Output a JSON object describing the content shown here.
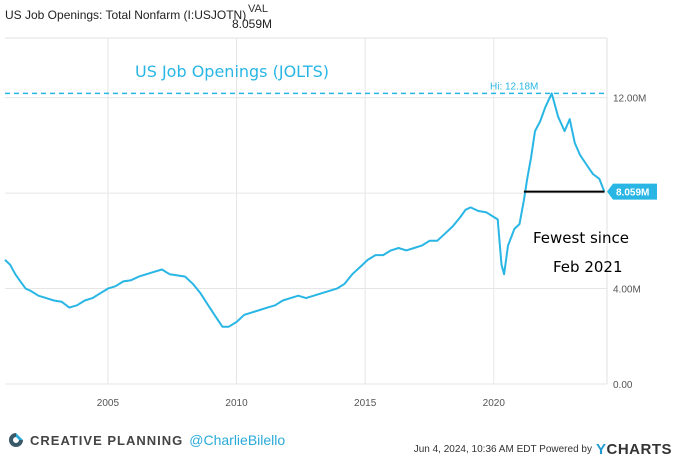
{
  "header": {
    "series_label": "US Job Openings: Total Nonfarm (I:USJOTN)",
    "val_label": "VAL",
    "val_value": "8.059M"
  },
  "chart_data": {
    "type": "line",
    "title": "US Job Openings (JOLTS)",
    "xlabel": "",
    "ylabel": "",
    "xlim": [
      2001.0,
      2024.4
    ],
    "ylim": [
      0,
      14.5
    ],
    "x_ticks": [
      2005,
      2010,
      2015,
      2020
    ],
    "x_tick_labels": [
      "2005",
      "2010",
      "2015",
      "2020"
    ],
    "y_ticks": [
      0,
      4,
      12
    ],
    "y_tick_labels": [
      "0.00",
      "4.00M",
      "12.00M"
    ],
    "high_line": {
      "value": 12.18,
      "label": "Hi: 12.18M"
    },
    "last_value_label": "8.059M",
    "annotation": {
      "text_line1": "Fewest since",
      "text_line2": "Feb 2021",
      "from_x": 2021.17,
      "to_x": 2024.3,
      "y": 8.06
    },
    "series": [
      {
        "color": "#29b6e5",
        "points": [
          [
            2001.0,
            5.2
          ],
          [
            2001.2,
            5.0
          ],
          [
            2001.4,
            4.6
          ],
          [
            2001.6,
            4.3
          ],
          [
            2001.8,
            4.0
          ],
          [
            2002.0,
            3.9
          ],
          [
            2002.3,
            3.7
          ],
          [
            2002.6,
            3.6
          ],
          [
            2002.9,
            3.5
          ],
          [
            2003.2,
            3.45
          ],
          [
            2003.5,
            3.2
          ],
          [
            2003.8,
            3.3
          ],
          [
            2004.1,
            3.5
          ],
          [
            2004.4,
            3.6
          ],
          [
            2004.7,
            3.8
          ],
          [
            2005.0,
            4.0
          ],
          [
            2005.3,
            4.1
          ],
          [
            2005.6,
            4.3
          ],
          [
            2005.9,
            4.35
          ],
          [
            2006.2,
            4.5
          ],
          [
            2006.5,
            4.6
          ],
          [
            2006.8,
            4.7
          ],
          [
            2007.1,
            4.8
          ],
          [
            2007.4,
            4.6
          ],
          [
            2007.7,
            4.55
          ],
          [
            2008.0,
            4.5
          ],
          [
            2008.3,
            4.2
          ],
          [
            2008.6,
            3.8
          ],
          [
            2008.9,
            3.3
          ],
          [
            2009.2,
            2.8
          ],
          [
            2009.45,
            2.4
          ],
          [
            2009.7,
            2.4
          ],
          [
            2010.0,
            2.6
          ],
          [
            2010.3,
            2.9
          ],
          [
            2010.6,
            3.0
          ],
          [
            2010.9,
            3.1
          ],
          [
            2011.2,
            3.2
          ],
          [
            2011.5,
            3.3
          ],
          [
            2011.8,
            3.5
          ],
          [
            2012.1,
            3.6
          ],
          [
            2012.4,
            3.7
          ],
          [
            2012.7,
            3.6
          ],
          [
            2013.0,
            3.7
          ],
          [
            2013.3,
            3.8
          ],
          [
            2013.6,
            3.9
          ],
          [
            2013.9,
            4.0
          ],
          [
            2014.2,
            4.2
          ],
          [
            2014.5,
            4.6
          ],
          [
            2014.8,
            4.9
          ],
          [
            2015.1,
            5.2
          ],
          [
            2015.4,
            5.4
          ],
          [
            2015.7,
            5.4
          ],
          [
            2016.0,
            5.6
          ],
          [
            2016.3,
            5.7
          ],
          [
            2016.6,
            5.6
          ],
          [
            2016.9,
            5.7
          ],
          [
            2017.2,
            5.8
          ],
          [
            2017.5,
            6.0
          ],
          [
            2017.8,
            6.0
          ],
          [
            2018.1,
            6.3
          ],
          [
            2018.4,
            6.6
          ],
          [
            2018.7,
            7.0
          ],
          [
            2018.9,
            7.3
          ],
          [
            2019.1,
            7.4
          ],
          [
            2019.4,
            7.25
          ],
          [
            2019.7,
            7.2
          ],
          [
            2020.0,
            7.0
          ],
          [
            2020.15,
            6.9
          ],
          [
            2020.3,
            5.0
          ],
          [
            2020.4,
            4.6
          ],
          [
            2020.55,
            5.8
          ],
          [
            2020.8,
            6.5
          ],
          [
            2021.0,
            6.7
          ],
          [
            2021.17,
            7.7
          ],
          [
            2021.3,
            8.6
          ],
          [
            2021.45,
            9.5
          ],
          [
            2021.6,
            10.6
          ],
          [
            2021.8,
            11.0
          ],
          [
            2022.0,
            11.6
          ],
          [
            2022.25,
            12.18
          ],
          [
            2022.5,
            11.2
          ],
          [
            2022.75,
            10.6
          ],
          [
            2022.95,
            11.1
          ],
          [
            2023.15,
            10.1
          ],
          [
            2023.35,
            9.6
          ],
          [
            2023.6,
            9.2
          ],
          [
            2023.85,
            8.8
          ],
          [
            2024.1,
            8.6
          ],
          [
            2024.3,
            8.06
          ]
        ]
      }
    ]
  },
  "footer": {
    "brand": "CREATIVE PLANNING",
    "handle": "@CharlieBilello",
    "timestamp": "Jun 4, 2024, 10:36 AM EDT Powered by",
    "ycharts_y": "Y",
    "ycharts_rest": "CHARTS"
  },
  "colors": {
    "line": "#29b6e5",
    "grid": "#e2e2e2",
    "accent": "#1d9bd1"
  }
}
